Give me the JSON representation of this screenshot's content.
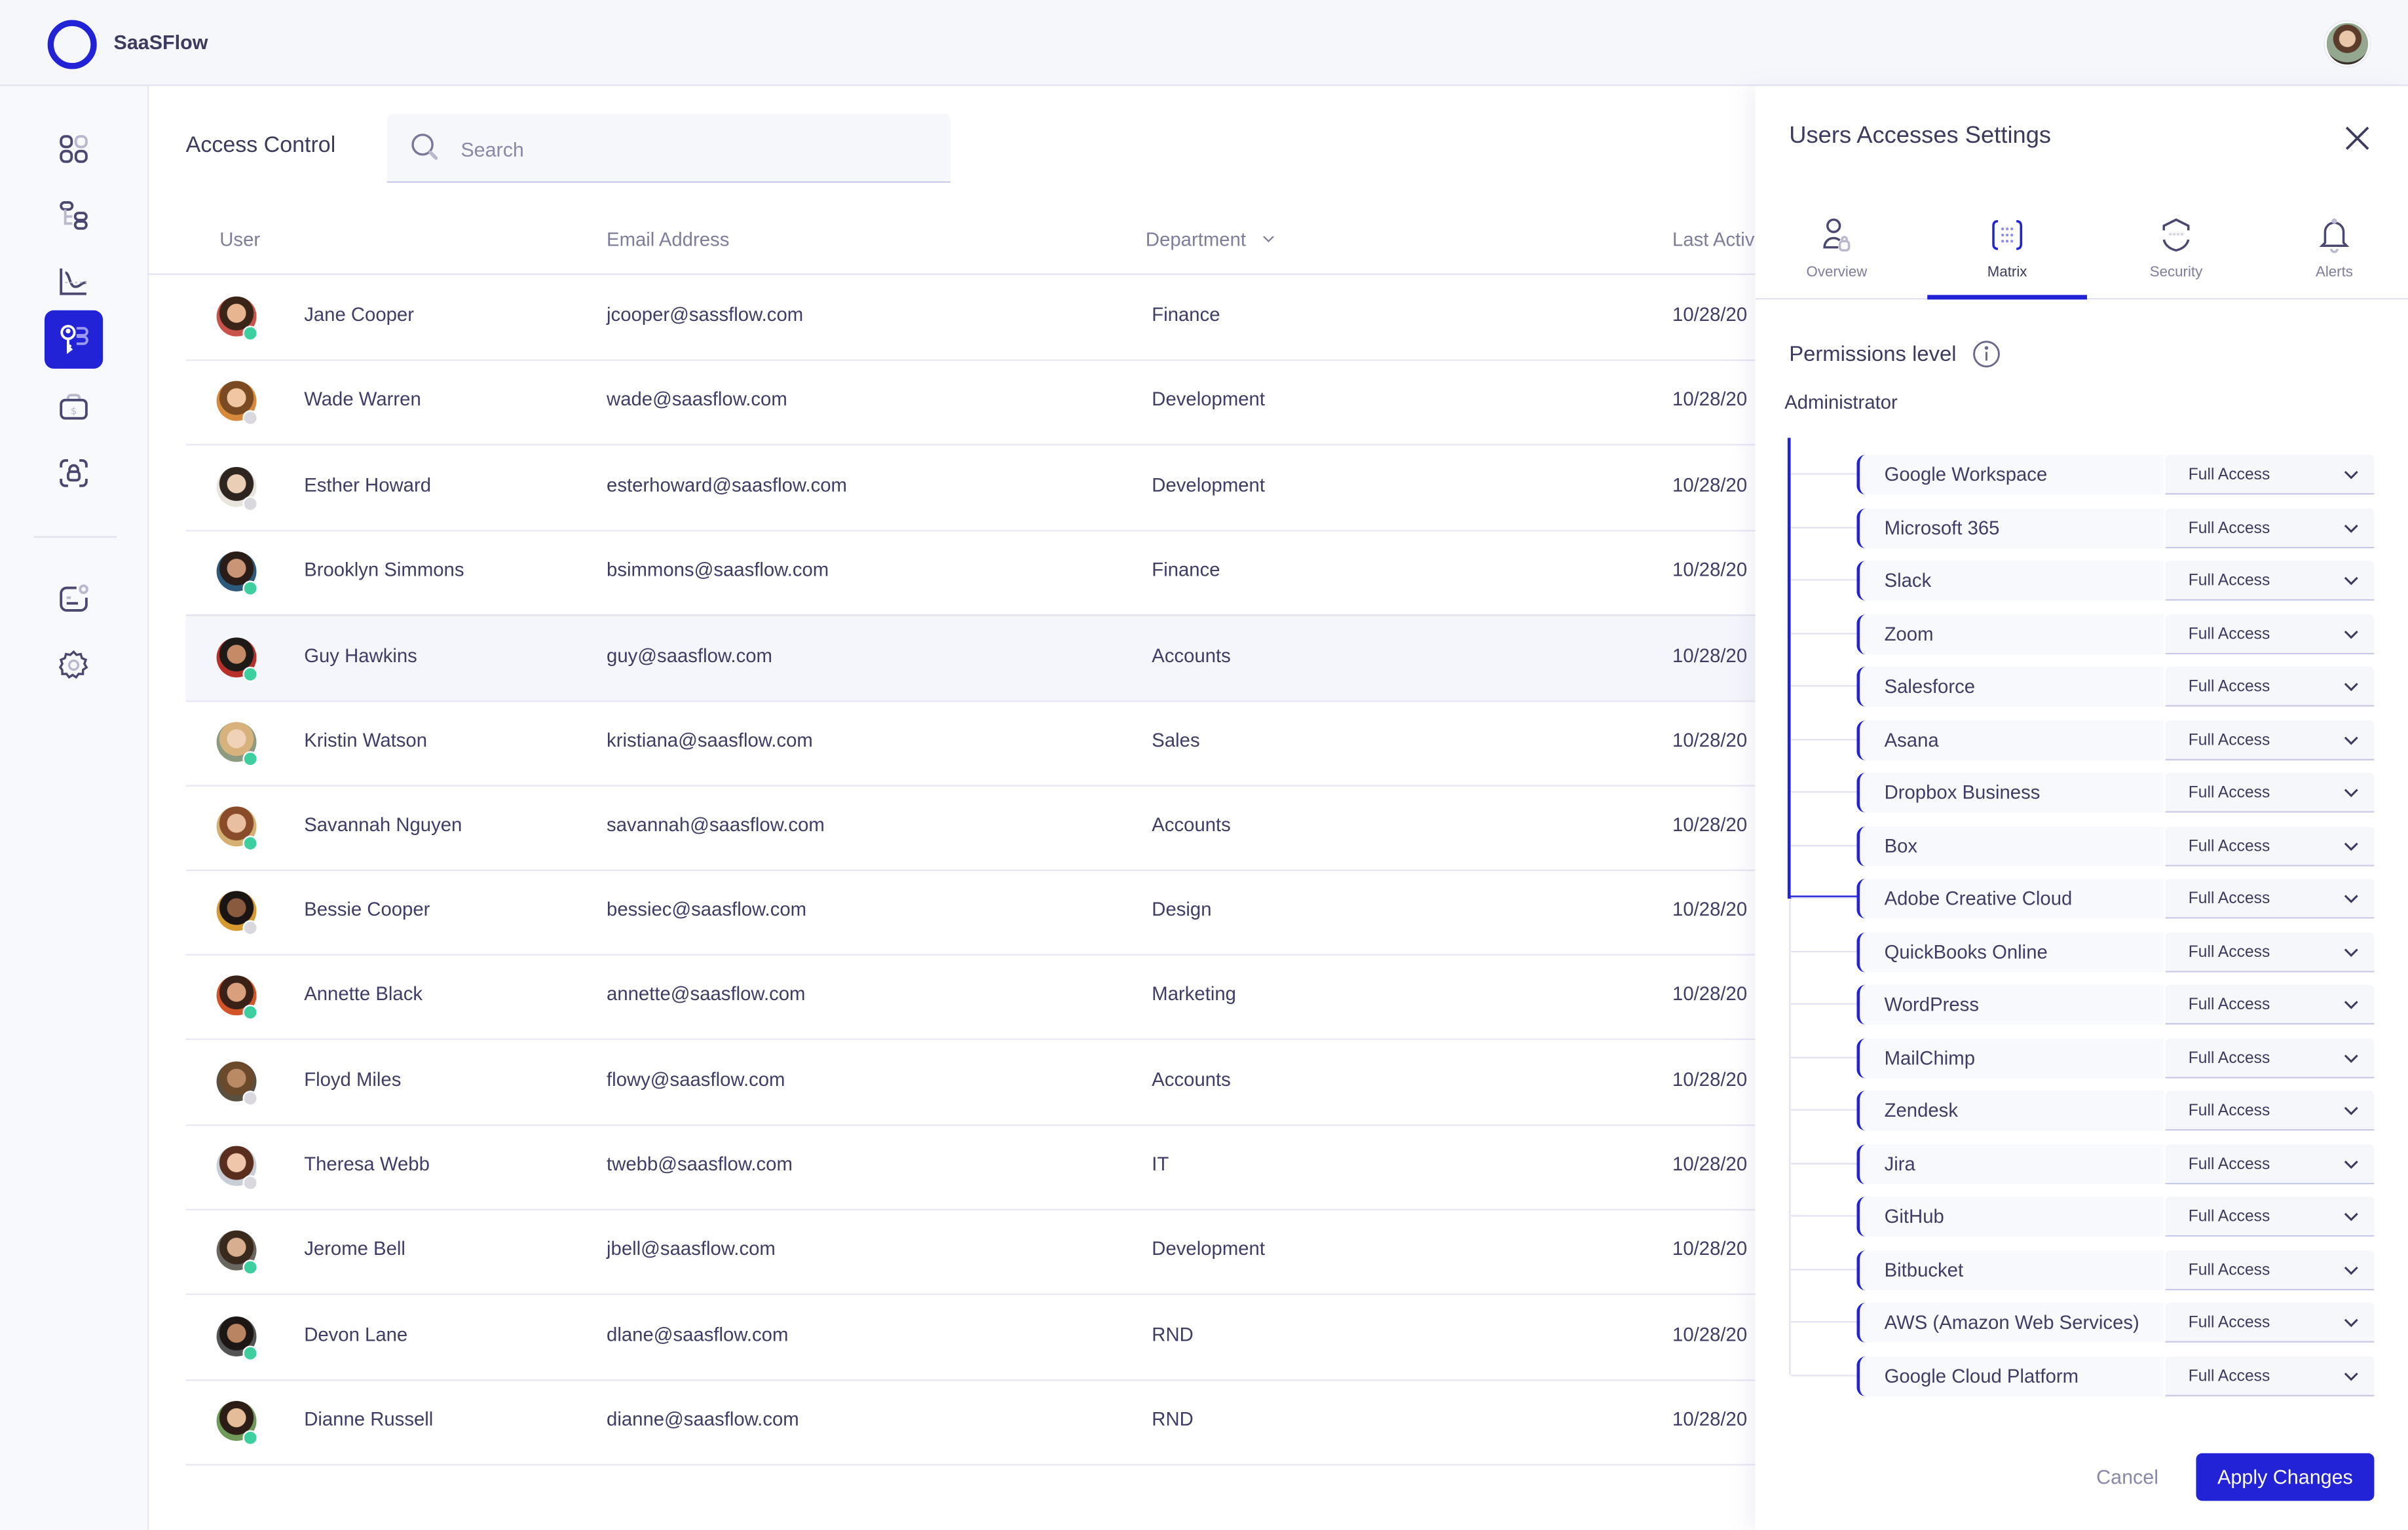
{
  "app": {
    "brand": "SaaSFlow"
  },
  "colors": {
    "accent": "#2222d6",
    "online": "#3ecf9e",
    "offline": "#d8d8de",
    "text": "#3f3d66",
    "muted": "#7f7d9c"
  },
  "sidebar": {
    "items": [
      {
        "name": "dashboard-icon",
        "active": false
      },
      {
        "name": "hierarchy-icon",
        "active": false
      },
      {
        "name": "analytics-icon",
        "active": false
      },
      {
        "name": "access-key-icon",
        "active": true
      },
      {
        "name": "billing-icon",
        "active": false
      },
      {
        "name": "security-lock-icon",
        "active": false
      },
      {
        "name": "messages-icon",
        "active": false
      },
      {
        "name": "settings-icon",
        "active": false
      }
    ]
  },
  "main": {
    "title": "Access Control",
    "search": {
      "placeholder": "Search",
      "value": ""
    },
    "columns": {
      "user": "User",
      "email": "Email Address",
      "department": "Department",
      "last_activity": "Last Activ"
    },
    "rows": [
      {
        "name": "Jane Cooper",
        "email": "jcooper@sassflow.com",
        "department": "Finance",
        "last_activity": "10/28/20",
        "status": "online"
      },
      {
        "name": "Wade Warren",
        "email": "wade@saasflow.com",
        "department": "Development",
        "last_activity": "10/28/20",
        "status": "offline"
      },
      {
        "name": "Esther Howard",
        "email": "esterhoward@saasflow.com",
        "department": "Development",
        "last_activity": "10/28/20",
        "status": "offline"
      },
      {
        "name": "Brooklyn Simmons",
        "email": "bsimmons@saasflow.com",
        "department": "Finance",
        "last_activity": "10/28/20",
        "status": "online"
      },
      {
        "name": "Guy Hawkins",
        "email": "guy@saasflow.com",
        "department": "Accounts",
        "last_activity": "10/28/20",
        "status": "online",
        "selected": true
      },
      {
        "name": "Kristin Watson",
        "email": "kristiana@saasflow.com",
        "department": "Sales",
        "last_activity": "10/28/20",
        "status": "online"
      },
      {
        "name": "Savannah Nguyen",
        "email": "savannah@saasflow.com",
        "department": "Accounts",
        "last_activity": "10/28/20",
        "status": "online"
      },
      {
        "name": "Bessie Cooper",
        "email": "bessiec@saasflow.com",
        "department": "Design",
        "last_activity": "10/28/20",
        "status": "offline"
      },
      {
        "name": "Annette Black",
        "email": "annette@saasflow.com",
        "department": "Marketing",
        "last_activity": "10/28/20",
        "status": "online"
      },
      {
        "name": "Floyd Miles",
        "email": "flowy@saasflow.com",
        "department": "Accounts",
        "last_activity": "10/28/20",
        "status": "offline"
      },
      {
        "name": "Theresa Webb",
        "email": "twebb@saasflow.com",
        "department": "IT",
        "last_activity": "10/28/20",
        "status": "offline"
      },
      {
        "name": "Jerome Bell",
        "email": "jbell@saasflow.com",
        "department": "Development",
        "last_activity": "10/28/20",
        "status": "online"
      },
      {
        "name": "Devon Lane",
        "email": "dlane@saasflow.com",
        "department": "RND",
        "last_activity": "10/28/20",
        "status": "online"
      },
      {
        "name": "Dianne Russell",
        "email": "dianne@saasflow.com",
        "department": "RND",
        "last_activity": "10/28/20",
        "status": "online"
      }
    ]
  },
  "panel": {
    "title": "Users Accesses Settings",
    "tabs": [
      {
        "label": "Overview",
        "icon": "user-lock-icon",
        "active": false
      },
      {
        "label": "Matrix",
        "icon": "matrix-grid-icon",
        "active": true
      },
      {
        "label": "Security",
        "icon": "shield-password-icon",
        "active": false
      },
      {
        "label": "Alerts",
        "icon": "bell-icon",
        "active": false
      }
    ],
    "permissions_title": "Permissions level",
    "role": "Administrator",
    "permissions": [
      {
        "app": "Google Workspace",
        "level": "Full Access"
      },
      {
        "app": "Microsoft 365",
        "level": "Full Access"
      },
      {
        "app": "Slack",
        "level": "Full Access"
      },
      {
        "app": "Zoom",
        "level": "Full Access"
      },
      {
        "app": "Salesforce",
        "level": "Full Access"
      },
      {
        "app": "Asana",
        "level": "Full Access"
      },
      {
        "app": "Dropbox Business",
        "level": "Full Access"
      },
      {
        "app": "Box",
        "level": "Full Access"
      },
      {
        "app": "Adobe Creative Cloud",
        "level": "Full Access"
      },
      {
        "app": "QuickBooks Online",
        "level": "Full Access"
      },
      {
        "app": "WordPress",
        "level": "Full Access"
      },
      {
        "app": "MailChimp",
        "level": "Full Access"
      },
      {
        "app": "Zendesk",
        "level": "Full Access"
      },
      {
        "app": "Jira",
        "level": "Full Access"
      },
      {
        "app": "GitHub",
        "level": "Full Access"
      },
      {
        "app": "Bitbucket",
        "level": "Full Access"
      },
      {
        "app": "AWS (Amazon Web Services)",
        "level": "Full Access"
      },
      {
        "app": "Google Cloud Platform",
        "level": "Full Access"
      }
    ],
    "cancel_label": "Cancel",
    "apply_label": "Apply Changes"
  }
}
